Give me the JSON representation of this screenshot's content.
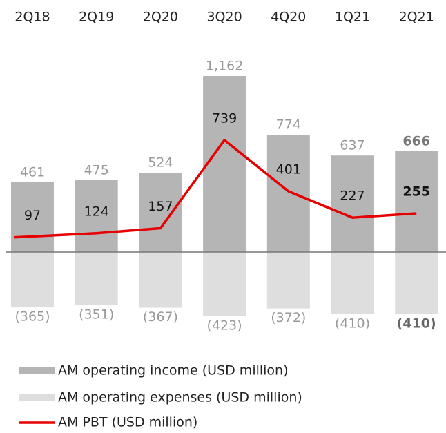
{
  "chart_data": {
    "type": "bar-line",
    "categories": [
      "2Q18",
      "2Q19",
      "2Q20",
      "3Q20",
      "4Q20",
      "1Q21",
      "2Q21"
    ],
    "series": [
      {
        "name": "AM operating income (USD million)",
        "type": "bar",
        "color": "#b5b5b5",
        "values": [
          461,
          475,
          524,
          1162,
          774,
          637,
          666
        ],
        "value_labels": [
          "461",
          "475",
          "524",
          "1,162",
          "774",
          "637",
          "666"
        ]
      },
      {
        "name": "AM operating expenses (USD million)",
        "type": "bar",
        "color": "#dedede",
        "values": [
          -365,
          -351,
          -367,
          -423,
          -372,
          -410,
          -410
        ],
        "value_labels": [
          "(365)",
          "(351)",
          "(367)",
          "(423)",
          "(372)",
          "(410)",
          "(410)"
        ]
      },
      {
        "name": "AM PBT (USD million)",
        "type": "line",
        "color": "#e60000",
        "values": [
          97,
          124,
          157,
          739,
          401,
          227,
          255
        ]
      }
    ]
  }
}
